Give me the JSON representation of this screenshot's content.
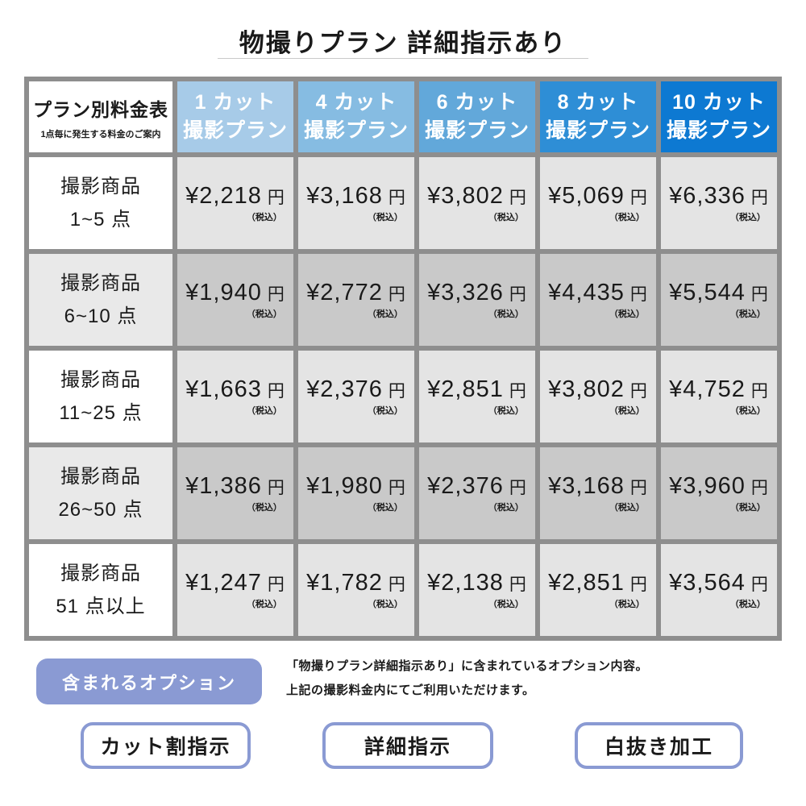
{
  "page": {
    "title": "物撮りプラン 詳細指示あり"
  },
  "table": {
    "corner": {
      "title": "プラン別料金表",
      "subtitle": "1点毎に発生する料金のご案内"
    },
    "plan_headers": [
      {
        "line1": "1 カット",
        "line2": "撮影プラン",
        "color": "#a7cbe8"
      },
      {
        "line1": "4 カット",
        "line2": "撮影プラン",
        "color": "#86bce2"
      },
      {
        "line1": "6 カット",
        "line2": "撮影プラン",
        "color": "#62a8da"
      },
      {
        "line1": "8 カット",
        "line2": "撮影プラン",
        "color": "#2e8ed6"
      },
      {
        "line1": "10 カット",
        "line2": "撮影プラン",
        "color": "#0d79d2"
      }
    ],
    "unit": "円",
    "tax_note": "（税込）",
    "rows": [
      {
        "label_top": "撮影商品",
        "label_bottom": "1~5 点",
        "prices": [
          "¥2,218",
          "¥3,168",
          "¥3,802",
          "¥5,069",
          "¥6,336"
        ]
      },
      {
        "label_top": "撮影商品",
        "label_bottom": "6~10 点",
        "prices": [
          "¥1,940",
          "¥2,772",
          "¥3,326",
          "¥4,435",
          "¥5,544"
        ]
      },
      {
        "label_top": "撮影商品",
        "label_bottom": "11~25 点",
        "prices": [
          "¥1,663",
          "¥2,376",
          "¥2,851",
          "¥3,802",
          "¥4,752"
        ]
      },
      {
        "label_top": "撮影商品",
        "label_bottom": "26~50 点",
        "prices": [
          "¥1,386",
          "¥1,980",
          "¥2,376",
          "¥3,168",
          "¥3,960"
        ]
      },
      {
        "label_top": "撮影商品",
        "label_bottom": "51 点以上",
        "prices": [
          "¥1,247",
          "¥1,782",
          "¥2,138",
          "¥2,851",
          "¥3,564"
        ]
      }
    ]
  },
  "options": {
    "badge_label": "含まれるオプション",
    "description_line1": "「物撮りプラン詳細指示あり」に含まれているオプション内容。",
    "description_line2": "上記の撮影料金内にてご利用いただけます。",
    "buttons": [
      {
        "label": "カット割指示"
      },
      {
        "label": "詳細指示"
      },
      {
        "label": "白抜き加工"
      }
    ]
  },
  "colors": {
    "grid_border": "#8e8e8e",
    "row_odd_price_bg": "#e4e4e4",
    "row_even_price_bg": "#c9c9c9",
    "row_even_label_bg": "#e9e9e9",
    "accent_periwinkle": "#8a9ad3"
  },
  "chart_data": {
    "type": "table",
    "title": "物撮りプラン 詳細指示あり",
    "columns": [
      "プラン別料金表（1点毎に発生する料金のご案内）",
      "1カット撮影プラン",
      "4カット撮影プラン",
      "6カット撮影プラン",
      "8カット撮影プラン",
      "10カット撮影プラン"
    ],
    "rows": [
      [
        "撮影商品 1~5点",
        2218,
        3168,
        3802,
        5069,
        6336
      ],
      [
        "撮影商品 6~10点",
        1940,
        2772,
        3326,
        4435,
        5544
      ],
      [
        "撮影商品 11~25点",
        1663,
        2376,
        2851,
        3802,
        4752
      ],
      [
        "撮影商品 26~50点",
        1386,
        1980,
        2376,
        3168,
        3960
      ],
      [
        "撮影商品 51点以上",
        1247,
        1782,
        2138,
        2851,
        3564
      ]
    ],
    "unit": "円（税込）",
    "legend_position": "none",
    "notes": [
      "含まれるオプション: カット割指示 / 詳細指示 / 白抜き加工"
    ]
  }
}
